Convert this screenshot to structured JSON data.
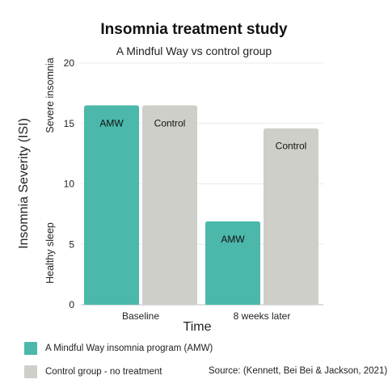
{
  "chart_data": {
    "type": "bar",
    "title": "Insomnia treatment study",
    "subtitle": "A Mindful Way vs control group",
    "xlabel": "Time",
    "ylabel": "Insomnia Severity (ISI)",
    "y_annotations": {
      "high": "Severe insomnia",
      "low": "Healthy sleep"
    },
    "categories": [
      "Baseline",
      "8 weeks later"
    ],
    "ylim": [
      0,
      20
    ],
    "yticks": [
      0,
      5,
      10,
      15,
      20
    ],
    "grid": true,
    "series": [
      {
        "name": "AMW",
        "color": "#4bb8ab",
        "values": [
          16.5,
          6.9
        ]
      },
      {
        "name": "Control",
        "color": "#cfcfca",
        "values": [
          16.5,
          14.6
        ]
      }
    ],
    "legend": [
      {
        "label": "A Mindful Way insomnia program (AMW)",
        "color": "#4bb8ab"
      },
      {
        "label": "Control group - no treatment",
        "color": "#cfcfca"
      }
    ],
    "source": "Source: (Kennett, Bei Bei & Jackson, 2021)"
  }
}
